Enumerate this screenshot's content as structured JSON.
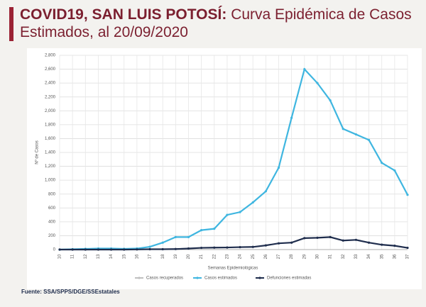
{
  "chart_data": {
    "type": "line",
    "title": "COVID19, SAN LUIS POTOSÍ:",
    "subtitle": "Curva Epidémica de Casos Estimados, al 20/09/2020",
    "x_label": "Semanas Epidemiológicas",
    "y_label": "Nº de Casos",
    "source": "Fuente: SSA/SPPS/DGE/SSEstatales",
    "categories": [
      "10",
      "11",
      "12",
      "13",
      "14",
      "15",
      "16",
      "17",
      "18",
      "19",
      "20",
      "21",
      "22",
      "23",
      "24",
      "25",
      "26",
      "27",
      "28",
      "29",
      "30",
      "31",
      "32",
      "33",
      "34",
      "35",
      "36",
      "37"
    ],
    "series": [
      {
        "name": "Casos recuperados",
        "color": "#bfbfbf",
        "values": [
          null,
          null,
          null,
          null,
          null,
          null,
          null,
          null,
          null,
          null,
          null,
          null,
          null,
          null,
          null,
          null,
          null,
          null,
          null,
          null,
          null,
          null,
          null,
          null,
          null,
          null,
          null,
          null
        ]
      },
      {
        "name": "Casos estimados",
        "color": "#3fb6e0",
        "values": [
          0,
          5,
          10,
          15,
          15,
          10,
          15,
          40,
          100,
          180,
          180,
          280,
          300,
          500,
          540,
          680,
          840,
          1180,
          1900,
          2600,
          2400,
          2150,
          1740,
          1660,
          1580,
          1250,
          1140,
          790
        ]
      },
      {
        "name": "Defunciones estimadas",
        "color": "#1f2d4d",
        "values": [
          0,
          0,
          0,
          0,
          0,
          0,
          2,
          5,
          5,
          8,
          15,
          25,
          28,
          30,
          35,
          38,
          60,
          90,
          100,
          165,
          170,
          180,
          130,
          140,
          100,
          70,
          55,
          25
        ]
      }
    ],
    "ylim": [
      0,
      2800
    ],
    "yticks": [
      0,
      200,
      400,
      600,
      800,
      {
        "value": 1000,
        "label": "1,000"
      },
      {
        "value": 1200,
        "label": "1,200"
      },
      {
        "value": 1400,
        "label": "1,400"
      },
      {
        "value": 1600,
        "label": "1,600"
      },
      {
        "value": 1800,
        "label": "1,800"
      },
      {
        "value": 2000,
        "label": "2,000"
      },
      {
        "value": 2200,
        "label": "2,200"
      },
      {
        "value": 2400,
        "label": "2,400"
      },
      {
        "value": 2600,
        "label": "2,600"
      },
      {
        "value": 2800,
        "label": "2,800"
      }
    ],
    "grid": true
  }
}
